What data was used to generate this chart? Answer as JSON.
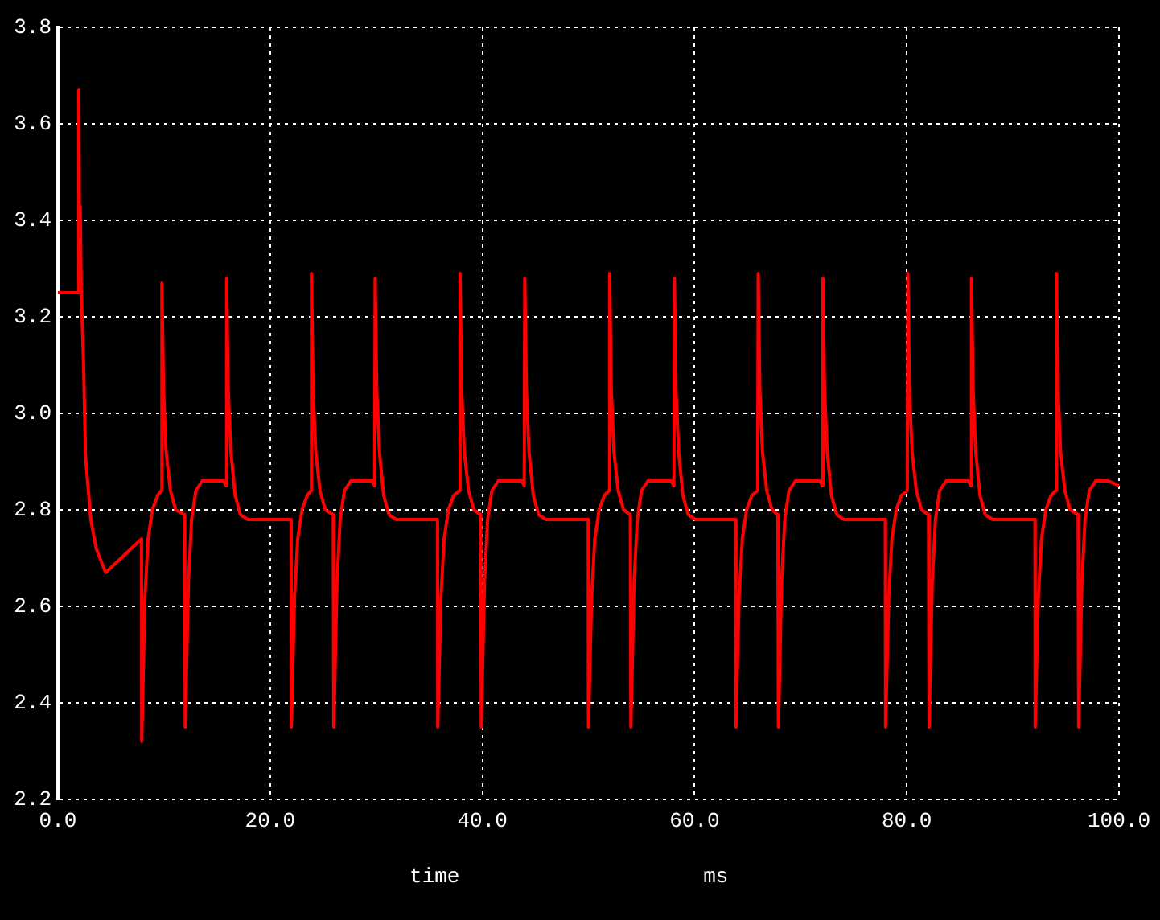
{
  "chart_data": {
    "type": "line",
    "xlabel": "time",
    "annotations": [
      "ms"
    ],
    "xlim": [
      0,
      100
    ],
    "xticks": [
      {
        "value": 0,
        "label": "0.0"
      },
      {
        "value": 20,
        "label": "20.0"
      },
      {
        "value": 40,
        "label": "40.0"
      },
      {
        "value": 60,
        "label": "60.0"
      },
      {
        "value": 80,
        "label": "80.0"
      },
      {
        "value": 100,
        "label": "100.0"
      }
    ],
    "ylim": [
      2.2,
      3.8
    ],
    "yticks": [
      {
        "value": 2.2,
        "label": "2.2"
      },
      {
        "value": 2.4,
        "label": "2.4"
      },
      {
        "value": 2.6,
        "label": "2.6"
      },
      {
        "value": 2.8,
        "label": "2.8"
      },
      {
        "value": 3.0,
        "label": "3.0"
      },
      {
        "value": 3.2,
        "label": "3.2"
      },
      {
        "value": 3.4,
        "label": "3.4"
      },
      {
        "value": 3.6,
        "label": "3.6"
      },
      {
        "value": 3.8,
        "label": "3.8"
      }
    ],
    "grid": true,
    "marker": "none",
    "line_style": "solid",
    "series": [
      {
        "color": "#ff0000",
        "x": [
          0,
          1.9,
          1.97,
          2.05,
          2.1,
          2.2,
          2.42,
          2.6,
          3.1,
          3.6,
          4.5,
          7.88,
          7.9,
          8.2,
          8.5,
          8.9,
          9.4,
          9.75,
          9.8,
          9.95,
          10.2,
          10.6,
          11.1,
          11.95,
          12.0,
          12.3,
          12.6,
          13.0,
          13.6,
          15.6,
          15.85,
          15.9,
          16.05,
          16.3,
          16.7,
          17.2,
          17.9,
          21.98,
          22.0,
          22.3,
          22.6,
          23.0,
          23.5,
          23.85,
          23.9,
          24.05,
          24.3,
          24.7,
          25.2,
          25.95,
          26.0,
          26.3,
          26.6,
          27.0,
          27.6,
          29.6,
          29.85,
          29.9,
          30.05,
          30.3,
          30.7,
          31.2,
          31.9,
          35.78,
          35.8,
          36.1,
          36.4,
          36.8,
          37.3,
          37.85,
          37.9,
          38.05,
          38.3,
          38.7,
          39.2,
          39.85,
          39.9,
          40.2,
          40.5,
          40.9,
          41.5,
          43.7,
          43.95,
          44.0,
          44.15,
          44.4,
          44.8,
          45.3,
          46.0,
          49.98,
          50.0,
          50.3,
          50.6,
          51.0,
          51.5,
          51.95,
          52.0,
          52.15,
          52.4,
          52.8,
          53.3,
          53.95,
          54.0,
          54.3,
          54.6,
          55.0,
          55.6,
          57.8,
          58.05,
          58.1,
          58.25,
          58.5,
          58.9,
          59.4,
          60.1,
          63.88,
          63.9,
          64.2,
          64.5,
          64.9,
          65.4,
          65.95,
          66.0,
          66.15,
          66.4,
          66.8,
          67.3,
          67.85,
          67.9,
          68.2,
          68.5,
          68.9,
          69.5,
          71.8,
          72.05,
          72.1,
          72.25,
          72.5,
          72.9,
          73.4,
          74.1,
          77.98,
          78.0,
          78.3,
          78.6,
          79.0,
          79.5,
          80.05,
          80.1,
          80.25,
          80.5,
          80.9,
          81.4,
          82.05,
          82.1,
          82.4,
          82.7,
          83.1,
          83.7,
          85.8,
          86.05,
          86.1,
          86.25,
          86.5,
          86.9,
          87.4,
          88.1,
          92.08,
          92.1,
          92.4,
          92.7,
          93.1,
          93.6,
          94.05,
          94.1,
          94.25,
          94.5,
          94.9,
          95.4,
          96.15,
          96.2,
          96.5,
          96.8,
          97.2,
          97.8,
          99.0,
          100
        ],
        "values": [
          3.25,
          3.25,
          3.67,
          3.25,
          3.43,
          3.25,
          3.1,
          2.91,
          2.78,
          2.72,
          2.67,
          2.74,
          2.32,
          2.62,
          2.74,
          2.8,
          2.83,
          2.84,
          3.27,
          3.05,
          2.92,
          2.84,
          2.8,
          2.79,
          2.35,
          2.65,
          2.78,
          2.84,
          2.86,
          2.86,
          2.85,
          3.28,
          3.05,
          2.92,
          2.83,
          2.79,
          2.78,
          2.78,
          2.35,
          2.62,
          2.74,
          2.8,
          2.83,
          2.84,
          3.29,
          3.05,
          2.92,
          2.84,
          2.8,
          2.79,
          2.35,
          2.65,
          2.78,
          2.84,
          2.86,
          2.86,
          2.85,
          3.28,
          3.05,
          2.92,
          2.83,
          2.79,
          2.78,
          2.78,
          2.35,
          2.62,
          2.74,
          2.8,
          2.83,
          2.84,
          3.29,
          3.05,
          2.92,
          2.84,
          2.8,
          2.79,
          2.35,
          2.65,
          2.78,
          2.84,
          2.86,
          2.86,
          2.85,
          3.28,
          3.05,
          2.92,
          2.83,
          2.79,
          2.78,
          2.78,
          2.35,
          2.62,
          2.74,
          2.8,
          2.83,
          2.84,
          3.29,
          3.05,
          2.92,
          2.84,
          2.8,
          2.79,
          2.35,
          2.65,
          2.78,
          2.84,
          2.86,
          2.86,
          2.85,
          3.28,
          3.05,
          2.92,
          2.83,
          2.79,
          2.78,
          2.78,
          2.35,
          2.62,
          2.74,
          2.8,
          2.83,
          2.84,
          3.29,
          3.05,
          2.92,
          2.84,
          2.8,
          2.79,
          2.35,
          2.65,
          2.78,
          2.84,
          2.86,
          2.86,
          2.85,
          3.28,
          3.05,
          2.92,
          2.83,
          2.79,
          2.78,
          2.78,
          2.35,
          2.62,
          2.74,
          2.8,
          2.83,
          2.84,
          3.29,
          3.05,
          2.92,
          2.84,
          2.8,
          2.79,
          2.35,
          2.65,
          2.78,
          2.84,
          2.86,
          2.86,
          2.85,
          3.28,
          3.05,
          2.92,
          2.83,
          2.79,
          2.78,
          2.78,
          2.35,
          2.62,
          2.74,
          2.8,
          2.83,
          2.84,
          3.29,
          3.05,
          2.92,
          2.84,
          2.8,
          2.79,
          2.35,
          2.65,
          2.78,
          2.84,
          2.86,
          2.86,
          2.85
        ]
      }
    ]
  }
}
